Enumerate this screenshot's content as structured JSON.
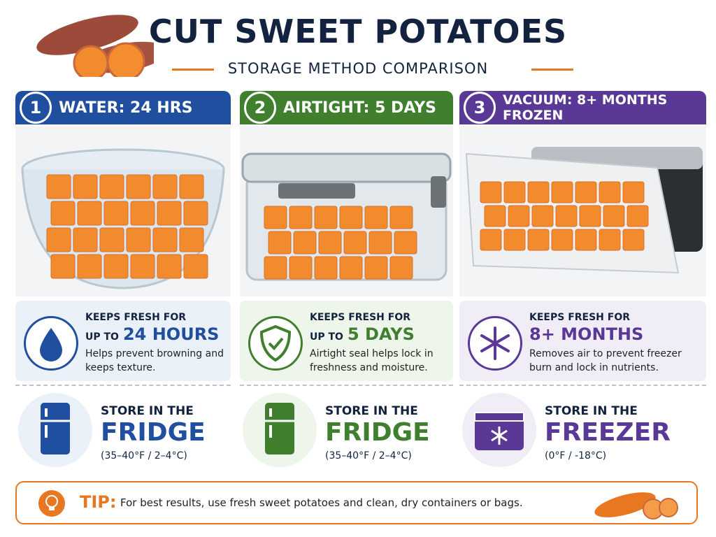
{
  "header": {
    "title": "CUT SWEET POTATOES",
    "subtitle": "STORAGE METHOD COMPARISON"
  },
  "methods": [
    {
      "number": "1",
      "heading": "WATER: 24 HRS",
      "color": "#1f4f9e",
      "tint": "#eaf1f9",
      "fresh_intro": "KEEPS FRESH FOR",
      "fresh_prefix": "UP TO",
      "fresh_value": "24 HOURS",
      "description": "Helps prevent browning and keeps texture.",
      "store_intro": "STORE IN THE",
      "store_place": "FRIDGE",
      "store_temp": "(35–40°F / 2–4°C)"
    },
    {
      "number": "2",
      "heading": "AIRTIGHT: 5 DAYS",
      "color": "#3f7f2e",
      "tint": "#eef5ea",
      "fresh_intro": "KEEPS FRESH FOR",
      "fresh_prefix": "UP TO",
      "fresh_value": "5 DAYS",
      "description": "Airtight seal helps lock in freshness and moisture.",
      "store_intro": "STORE IN THE",
      "store_place": "FRIDGE",
      "store_temp": "(35–40°F / 2–4°C)"
    },
    {
      "number": "3",
      "heading": "VACUUM: 8+ MONTHS FROZEN",
      "color": "#5a3996",
      "tint": "#f1edf7",
      "fresh_intro": "KEEPS FRESH FOR",
      "fresh_value": "8+ MONTHS",
      "description": "Removes air to prevent freezer burn and lock in nutrients.",
      "store_intro": "STORE IN THE",
      "store_place": "FREEZER",
      "store_temp": "(0°F / -18°C)"
    }
  ],
  "tip": {
    "label": "TIP:",
    "text": "For best results, use fresh sweet potatoes and clean, dry containers or bags."
  }
}
